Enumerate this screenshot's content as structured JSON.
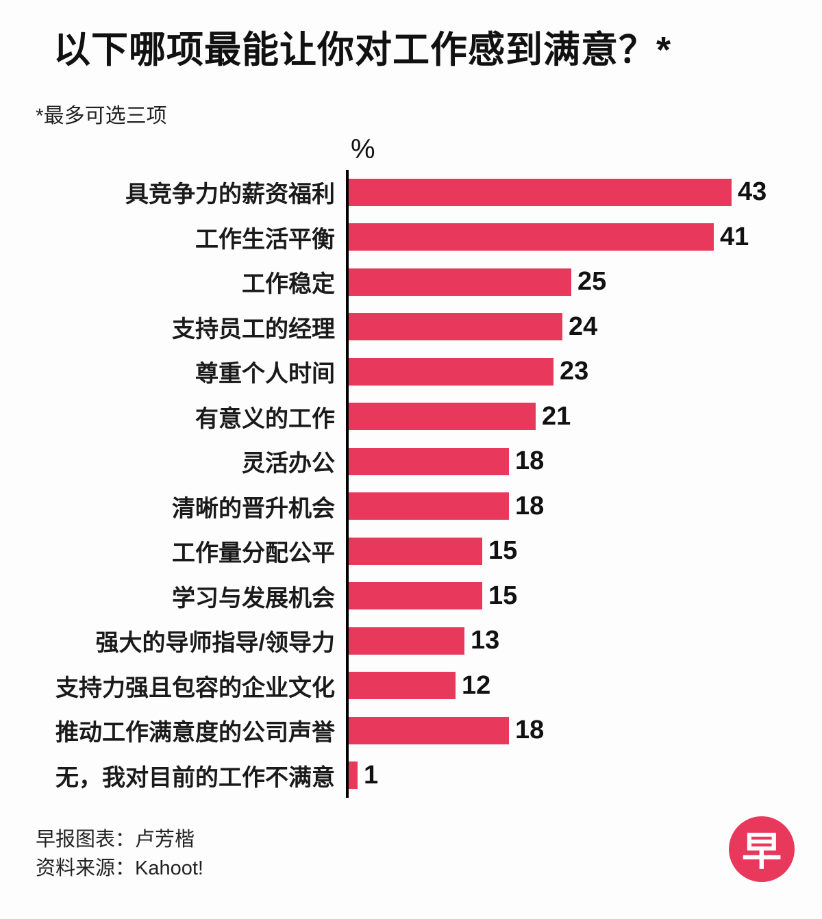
{
  "title": "以下哪项最能让你对工作感到满意？*",
  "footnote": "*最多可选三项",
  "axis_label": "%",
  "chart_data": {
    "type": "bar",
    "orientation": "horizontal",
    "title": "以下哪项最能让你对工作感到满意？*",
    "subtitle": "*最多可选三项",
    "unit": "%",
    "xlim": [
      0,
      45
    ],
    "bar_color": "#e8395c",
    "categories": [
      "具竞争力的薪资福利",
      "工作生活平衡",
      "工作稳定",
      "支持员工的经理",
      "尊重个人时间",
      "有意义的工作",
      "灵活办公",
      "清晰的晋升机会",
      "工作量分配公平",
      "学习与发展机会",
      "强大的导师指导/领导力",
      "支持力强且包容的企业文化",
      "推动工作满意度的公司声誉",
      "无，我对目前的工作不满意"
    ],
    "values": [
      43,
      41,
      25,
      24,
      23,
      21,
      18,
      18,
      15,
      15,
      13,
      12,
      18,
      1
    ]
  },
  "footer": {
    "credit": "早报图表：卢芳楷",
    "source": "资料来源：Kahoot!"
  },
  "logo": {
    "text": "早",
    "color": "#e8395c"
  }
}
